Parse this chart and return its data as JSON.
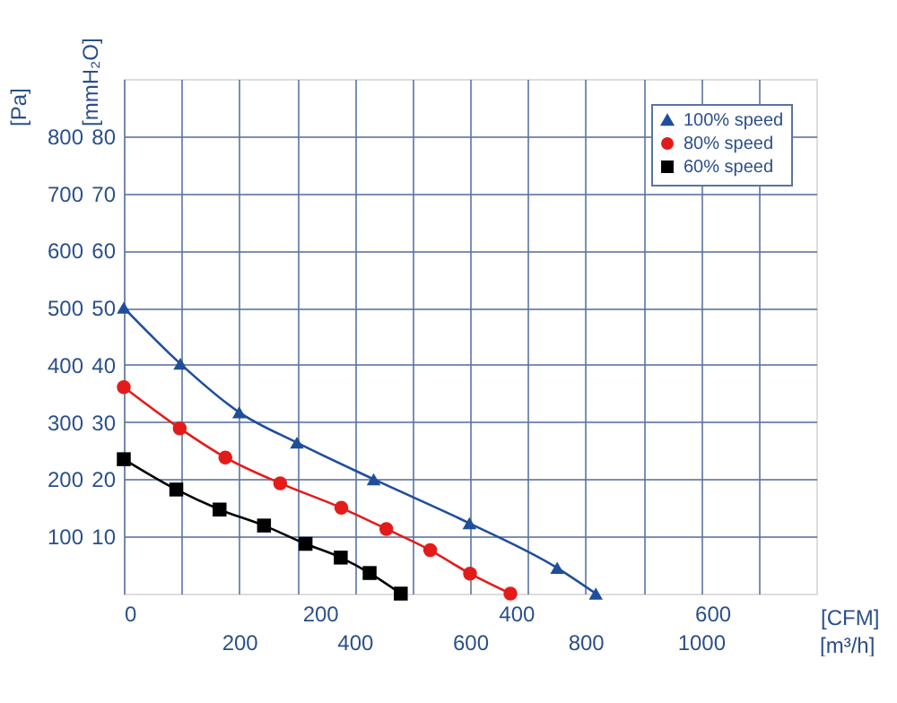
{
  "chart_data": {
    "type": "line",
    "xlabel": "[m³/h]",
    "ylabel": "[Pa]",
    "x2label": "[CFM]",
    "y2label": "[mmH₂O]",
    "xlim": [
      0,
      1200
    ],
    "xticks": [
      {
        "value": 0,
        "label": null
      },
      {
        "value": 100,
        "label": null
      },
      200,
      {
        "value": 300,
        "label": null
      },
      400,
      {
        "value": 500,
        "label": null
      },
      600,
      {
        "value": 700,
        "label": null
      },
      800,
      {
        "value": 900,
        "label": null
      },
      1000,
      {
        "value": 1100,
        "label": null
      }
    ],
    "x2lim": [
      0,
      706
    ],
    "x2ticks": [
      0,
      200,
      400,
      600
    ],
    "ylim": [
      0,
      900
    ],
    "yticks": [
      100,
      200,
      300,
      400,
      500,
      600,
      700,
      800
    ],
    "y2lim": [
      0,
      90
    ],
    "y2ticks": [
      10,
      20,
      30,
      40,
      50,
      60,
      70,
      80
    ],
    "grid": true,
    "legend": "top right",
    "line_style": "solid",
    "series": [
      {
        "name": "100% speed",
        "color": "#1f4e9a",
        "marker": "triangle",
        "x": [
          0,
          98,
          200,
          300,
          433,
          599,
          751,
          818
        ],
        "values": [
          500,
          402,
          317,
          264,
          200,
          123,
          45,
          0
        ]
      },
      {
        "name": "80% speed",
        "color": "#e31b1b",
        "marker": "circle",
        "x": [
          0,
          97,
          176,
          271,
          377,
          455,
          531,
          600,
          670
        ],
        "values": [
          361,
          289,
          238,
          193,
          150,
          113,
          76,
          35,
          0
        ]
      },
      {
        "name": "60% speed",
        "color": "#000000",
        "marker": "square",
        "x": [
          0,
          91,
          166,
          243,
          315,
          376,
          426,
          480
        ],
        "values": [
          235,
          182,
          147,
          119,
          87,
          63,
          36,
          0
        ]
      }
    ]
  }
}
